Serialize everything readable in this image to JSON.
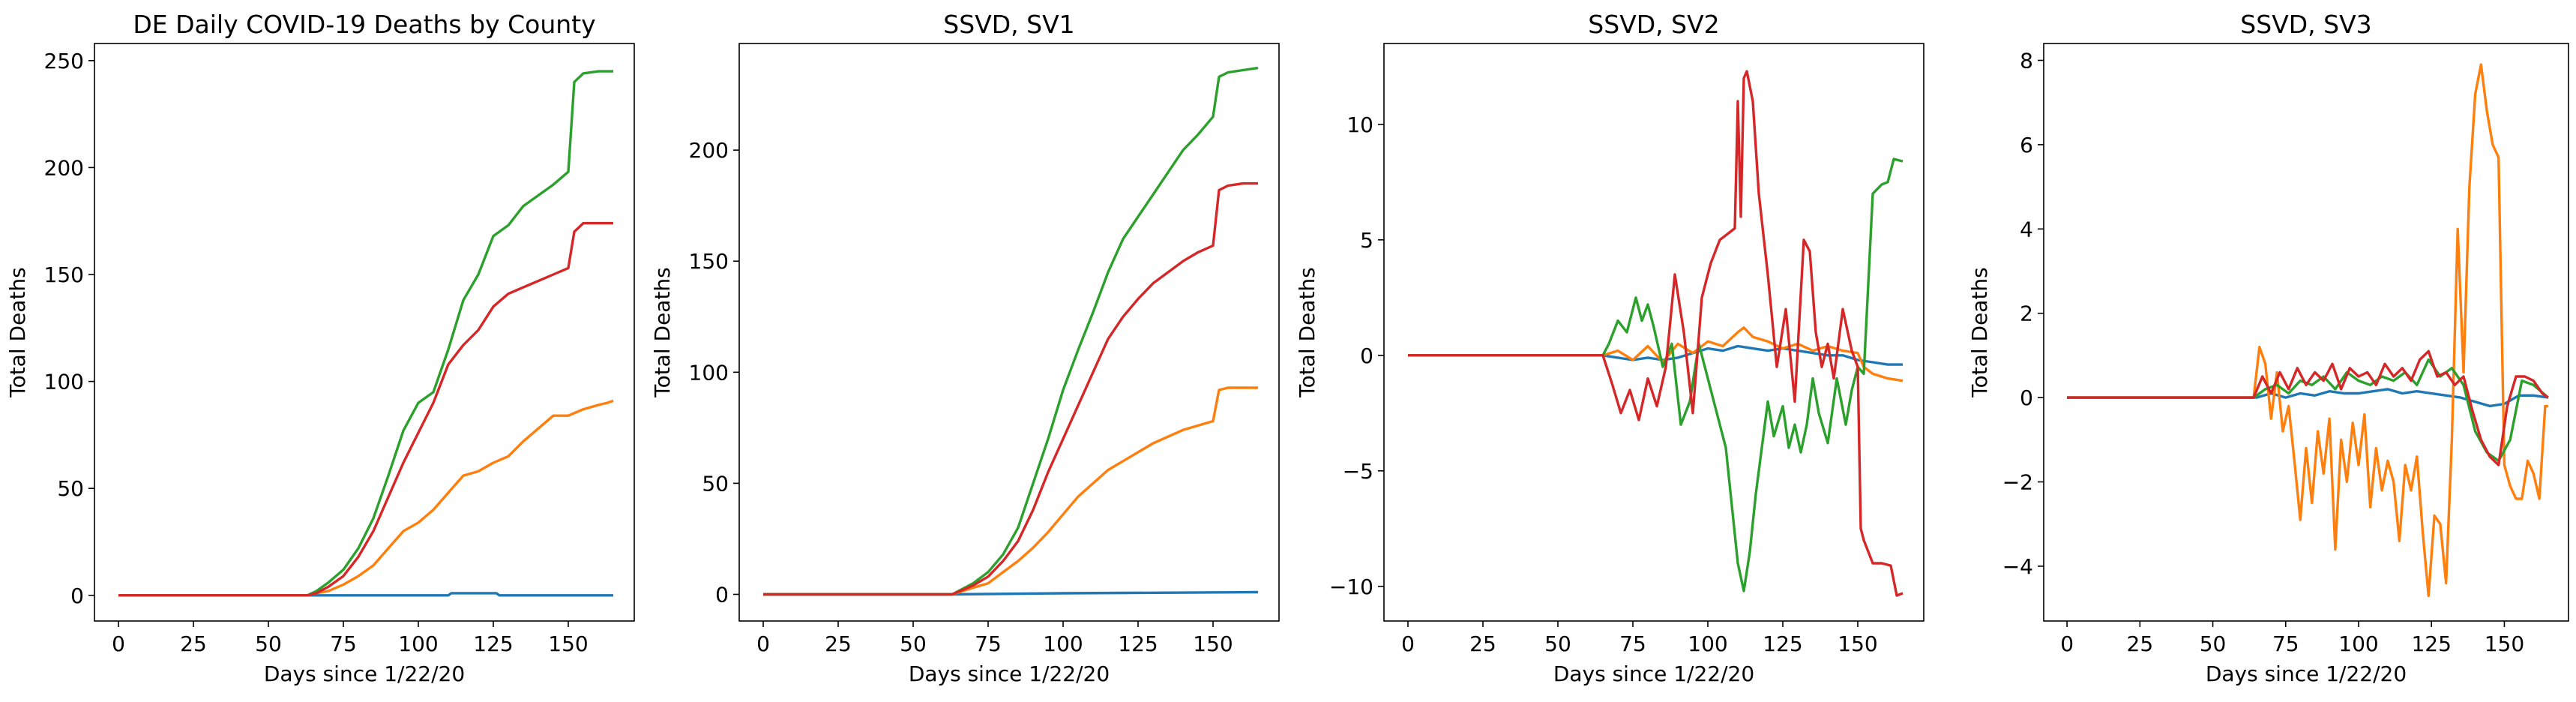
{
  "chart_data": [
    {
      "type": "line",
      "title": "DE Daily COVID-19 Deaths by County",
      "xlabel": "Days since 1/22/20",
      "ylabel": "Total Deaths",
      "xlim": [
        -8,
        172
      ],
      "ylim": [
        -12,
        258
      ],
      "xticks": [
        0,
        25,
        50,
        75,
        100,
        125,
        150
      ],
      "xtick_labels": [
        "0",
        "25",
        "50",
        "75",
        "100",
        "125",
        "150"
      ],
      "yticks": [
        0,
        50,
        100,
        150,
        200,
        250
      ],
      "ytick_labels": [
        "0",
        "50",
        "100",
        "150",
        "200",
        "250"
      ],
      "series": [
        {
          "color": "#1f77b4",
          "x": [
            0,
            63,
            64,
            110,
            111,
            126,
            127,
            165
          ],
          "values": [
            0,
            0,
            0,
            0,
            1,
            1,
            0,
            0
          ]
        },
        {
          "color": "#ff7f0e",
          "x": [
            0,
            63,
            66,
            70,
            75,
            80,
            85,
            90,
            95,
            100,
            105,
            110,
            115,
            120,
            125,
            130,
            135,
            140,
            145,
            150,
            155,
            160,
            163,
            165
          ],
          "values": [
            0,
            0,
            1,
            2,
            5,
            9,
            14,
            22,
            30,
            34,
            40,
            48,
            56,
            58,
            62,
            65,
            72,
            78,
            84,
            84,
            87,
            89,
            90,
            91
          ]
        },
        {
          "color": "#2ca02c",
          "x": [
            0,
            63,
            66,
            70,
            75,
            80,
            85,
            90,
            95,
            100,
            105,
            110,
            115,
            120,
            125,
            130,
            135,
            140,
            145,
            150,
            152,
            155,
            160,
            165
          ],
          "values": [
            0,
            0,
            2,
            6,
            12,
            22,
            36,
            56,
            77,
            90,
            95,
            115,
            138,
            150,
            168,
            173,
            182,
            187,
            192,
            198,
            240,
            244,
            245,
            245
          ]
        },
        {
          "color": "#d62728",
          "x": [
            0,
            63,
            66,
            70,
            75,
            80,
            85,
            90,
            95,
            100,
            105,
            110,
            115,
            120,
            125,
            130,
            135,
            140,
            145,
            150,
            152,
            155,
            160,
            165
          ],
          "values": [
            0,
            0,
            1,
            4,
            9,
            18,
            30,
            46,
            62,
            76,
            90,
            108,
            117,
            124,
            135,
            141,
            144,
            147,
            150,
            153,
            170,
            174,
            174,
            174
          ]
        }
      ]
    },
    {
      "type": "line",
      "title": "SSVD, SV1",
      "xlabel": "Days since 1/22/20",
      "ylabel": "Total Deaths",
      "xlim": [
        -8,
        172
      ],
      "ylim": [
        -12,
        248
      ],
      "xticks": [
        0,
        25,
        50,
        75,
        100,
        125,
        150
      ],
      "xtick_labels": [
        "0",
        "25",
        "50",
        "75",
        "100",
        "125",
        "150"
      ],
      "yticks": [
        0,
        50,
        100,
        150,
        200
      ],
      "ytick_labels": [
        "0",
        "50",
        "100",
        "150",
        "200"
      ],
      "series": [
        {
          "color": "#1f77b4",
          "x": [
            0,
            63,
            100,
            165
          ],
          "values": [
            0,
            0,
            0.5,
            1
          ]
        },
        {
          "color": "#ff7f0e",
          "x": [
            0,
            63,
            70,
            75,
            80,
            85,
            90,
            95,
            100,
            105,
            110,
            115,
            120,
            125,
            130,
            135,
            140,
            145,
            150,
            152,
            155,
            160,
            165
          ],
          "values": [
            0,
            0,
            3,
            5,
            10,
            15,
            21,
            28,
            36,
            44,
            50,
            56,
            60,
            64,
            68,
            71,
            74,
            76,
            78,
            92,
            93,
            93,
            93
          ]
        },
        {
          "color": "#2ca02c",
          "x": [
            0,
            63,
            70,
            75,
            80,
            85,
            90,
            95,
            100,
            105,
            110,
            115,
            120,
            125,
            130,
            135,
            140,
            145,
            150,
            152,
            155,
            160,
            165
          ],
          "values": [
            0,
            0,
            5,
            10,
            18,
            30,
            50,
            70,
            92,
            110,
            127,
            145,
            160,
            170,
            180,
            190,
            200,
            207,
            215,
            233,
            235,
            236,
            237
          ]
        },
        {
          "color": "#d62728",
          "x": [
            0,
            63,
            70,
            75,
            80,
            85,
            90,
            95,
            100,
            105,
            110,
            115,
            120,
            125,
            130,
            135,
            140,
            145,
            150,
            152,
            155,
            160,
            165
          ],
          "values": [
            0,
            0,
            4,
            8,
            15,
            24,
            38,
            55,
            70,
            85,
            100,
            115,
            125,
            133,
            140,
            145,
            150,
            154,
            157,
            182,
            184,
            185,
            185
          ]
        }
      ]
    },
    {
      "type": "line",
      "title": "SSVD, SV2",
      "xlabel": "Days since 1/22/20",
      "ylabel": "Total Deaths",
      "xlim": [
        -8,
        172
      ],
      "ylim": [
        -11.5,
        13.5
      ],
      "xticks": [
        0,
        25,
        50,
        75,
        100,
        125,
        150
      ],
      "xtick_labels": [
        "0",
        "25",
        "50",
        "75",
        "100",
        "125",
        "150"
      ],
      "yticks": [
        -10,
        -5,
        0,
        5,
        10
      ],
      "ytick_labels": [
        "−10",
        "−5",
        "0",
        "5",
        "10"
      ],
      "series": [
        {
          "color": "#1f77b4",
          "x": [
            0,
            65,
            70,
            75,
            80,
            85,
            90,
            95,
            100,
            105,
            110,
            115,
            120,
            125,
            130,
            135,
            140,
            145,
            150,
            155,
            160,
            165
          ],
          "values": [
            0,
            0,
            -0.1,
            -0.2,
            -0.1,
            -0.2,
            -0.1,
            0.1,
            0.3,
            0.2,
            0.4,
            0.3,
            0.2,
            0.3,
            0.2,
            0.1,
            0,
            0,
            -0.2,
            -0.3,
            -0.4,
            -0.4
          ]
        },
        {
          "color": "#ff7f0e",
          "x": [
            0,
            65,
            70,
            75,
            80,
            85,
            90,
            95,
            100,
            105,
            110,
            112,
            115,
            120,
            125,
            130,
            135,
            140,
            145,
            150,
            152,
            155,
            160,
            165
          ],
          "values": [
            0,
            0,
            0.2,
            -0.2,
            0.4,
            -0.3,
            0.5,
            0.1,
            0.6,
            0.4,
            1.0,
            1.2,
            0.8,
            0.6,
            0.3,
            0.5,
            0.2,
            0.4,
            0.2,
            0.1,
            -0.5,
            -0.8,
            -1.0,
            -1.1
          ]
        },
        {
          "color": "#2ca02c",
          "x": [
            0,
            65,
            67,
            70,
            73,
            76,
            78,
            80,
            82,
            85,
            88,
            91,
            94,
            97,
            100,
            103,
            106,
            108,
            110,
            112,
            114,
            116,
            118,
            120,
            122,
            125,
            127,
            129,
            131,
            133,
            135,
            137,
            140,
            143,
            146,
            148,
            150,
            152,
            155,
            158,
            160,
            162,
            165
          ],
          "values": [
            0,
            0,
            0.5,
            1.5,
            1.0,
            2.5,
            1.5,
            2.2,
            1.2,
            -0.5,
            0.5,
            -3.0,
            -2.0,
            0.5,
            -1.0,
            -2.5,
            -4.0,
            -6.5,
            -9.0,
            -10.2,
            -8.5,
            -6.0,
            -4.0,
            -2.0,
            -3.5,
            -2.2,
            -4.0,
            -3.0,
            -4.2,
            -3.0,
            -1.0,
            -2.5,
            -3.8,
            -1.0,
            -3.0,
            -1.5,
            -0.5,
            -0.8,
            7.0,
            7.4,
            7.5,
            8.5,
            8.4
          ]
        },
        {
          "color": "#d62728",
          "x": [
            0,
            65,
            68,
            71,
            74,
            77,
            80,
            83,
            86,
            89,
            92,
            95,
            98,
            101,
            104,
            107,
            109,
            110,
            111,
            112,
            113,
            115,
            117,
            120,
            123,
            126,
            129,
            132,
            134,
            136,
            138,
            140,
            142,
            145,
            148,
            150,
            151,
            152,
            155,
            158,
            161,
            163,
            165
          ],
          "values": [
            0,
            0,
            -1.2,
            -2.5,
            -1.5,
            -2.8,
            -1.0,
            -2.2,
            -0.5,
            3.5,
            1.0,
            -2.5,
            2.5,
            4.0,
            5.0,
            5.3,
            5.5,
            11.0,
            6.0,
            12.0,
            12.3,
            11.0,
            7.0,
            3.5,
            -0.5,
            2.0,
            -2.0,
            5.0,
            4.5,
            1.0,
            -0.5,
            0.5,
            -1.0,
            2.0,
            0.2,
            -0.5,
            -7.5,
            -8.0,
            -9.0,
            -9.0,
            -9.1,
            -10.4,
            -10.3
          ]
        }
      ]
    },
    {
      "type": "line",
      "title": "SSVD, SV3",
      "xlabel": "Days since 1/22/20",
      "ylabel": "Total Deaths",
      "xlim": [
        -8,
        172
      ],
      "ylim": [
        -5.3,
        8.4
      ],
      "xticks": [
        0,
        25,
        50,
        75,
        100,
        125,
        150
      ],
      "xtick_labels": [
        "0",
        "25",
        "50",
        "75",
        "100",
        "125",
        "150"
      ],
      "yticks": [
        -4,
        -2,
        0,
        2,
        4,
        6,
        8
      ],
      "ytick_labels": [
        "−4",
        "−2",
        "0",
        "2",
        "4",
        "6",
        "8"
      ],
      "series": [
        {
          "color": "#1f77b4",
          "x": [
            0,
            65,
            70,
            75,
            80,
            85,
            90,
            95,
            100,
            105,
            110,
            115,
            120,
            125,
            130,
            135,
            140,
            145,
            150,
            155,
            160,
            165
          ],
          "values": [
            0,
            0,
            0.1,
            0,
            0.1,
            0.05,
            0.15,
            0.1,
            0.1,
            0.15,
            0.2,
            0.1,
            0.15,
            0.1,
            0.05,
            0,
            -0.1,
            -0.2,
            -0.15,
            0.05,
            0.05,
            0
          ]
        },
        {
          "color": "#ff7f0e",
          "x": [
            0,
            64,
            66,
            68,
            70,
            72,
            74,
            76,
            78,
            80,
            82,
            84,
            86,
            88,
            90,
            92,
            94,
            96,
            98,
            100,
            102,
            104,
            106,
            108,
            110,
            112,
            114,
            116,
            118,
            120,
            122,
            124,
            126,
            128,
            130,
            132,
            134,
            136,
            138,
            140,
            142,
            144,
            146,
            148,
            150,
            152,
            154,
            156,
            158,
            160,
            162,
            164,
            165
          ],
          "values": [
            0,
            0,
            1.2,
            0.8,
            -0.5,
            0.6,
            -0.8,
            -0.2,
            -1.5,
            -2.9,
            -1.2,
            -2.5,
            -0.8,
            -1.8,
            -0.5,
            -3.6,
            -1.0,
            -2.0,
            -0.6,
            -1.6,
            -0.4,
            -2.6,
            -1.2,
            -2.2,
            -1.5,
            -2.0,
            -3.4,
            -1.6,
            -2.2,
            -1.4,
            -3.2,
            -4.7,
            -2.8,
            -3.0,
            -4.4,
            -1.0,
            4.0,
            0.6,
            5.0,
            7.2,
            7.9,
            6.8,
            6.0,
            5.7,
            -1.6,
            -2.1,
            -2.4,
            -2.4,
            -1.5,
            -1.8,
            -2.4,
            -0.2,
            -0.2
          ]
        },
        {
          "color": "#2ca02c",
          "x": [
            0,
            64,
            68,
            72,
            76,
            80,
            84,
            88,
            92,
            96,
            100,
            104,
            108,
            112,
            116,
            120,
            124,
            128,
            132,
            136,
            140,
            144,
            148,
            152,
            156,
            160,
            165
          ],
          "values": [
            0,
            0,
            0.2,
            0.3,
            0.1,
            0.4,
            0.3,
            0.5,
            0.2,
            0.6,
            0.4,
            0.3,
            0.5,
            0.4,
            0.6,
            0.3,
            0.9,
            0.5,
            0.7,
            0.3,
            -0.8,
            -1.3,
            -1.5,
            -1.0,
            0.4,
            0.3,
            0
          ]
        },
        {
          "color": "#d62728",
          "x": [
            0,
            64,
            67,
            70,
            73,
            76,
            79,
            82,
            85,
            88,
            91,
            94,
            97,
            100,
            103,
            106,
            109,
            112,
            115,
            118,
            121,
            124,
            127,
            130,
            133,
            136,
            139,
            142,
            145,
            148,
            151,
            154,
            157,
            160,
            163,
            165
          ],
          "values": [
            0,
            0,
            0.5,
            0.1,
            0.6,
            0.2,
            0.7,
            0.3,
            0.6,
            0.4,
            0.8,
            0.2,
            0.7,
            0.5,
            0.6,
            0.3,
            0.8,
            0.5,
            0.7,
            0.4,
            0.9,
            1.1,
            0.5,
            0.6,
            0.3,
            0.5,
            -0.3,
            -1.0,
            -1.4,
            -1.6,
            -0.2,
            0.5,
            0.5,
            0.4,
            0.1,
            0
          ]
        }
      ]
    }
  ]
}
